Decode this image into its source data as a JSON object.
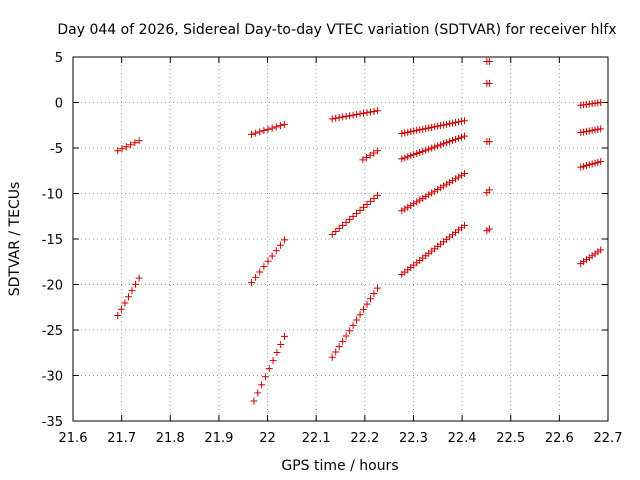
{
  "chart_data": {
    "type": "scatter",
    "title": "Day 044 of 2026, Sidereal Day-to-day VTEC variation (SDTVAR) for receiver hlfx",
    "xlabel": "GPS time / hours",
    "ylabel": "SDTVAR / TECUs",
    "xlim": [
      21.6,
      22.7
    ],
    "ylim": [
      -35,
      5
    ],
    "xticks": [
      "21.6",
      "21.7",
      "21.8",
      "21.9",
      "22",
      "22.1",
      "22.2",
      "22.3",
      "22.4",
      "22.5",
      "22.6",
      "22.7"
    ],
    "yticks": [
      "5",
      "0",
      "-5",
      "-10",
      "-15",
      "-20",
      "-25",
      "-30",
      "-35"
    ],
    "grid": true,
    "marker": "+",
    "marker_color": "#d00000",
    "tracks": [
      {
        "x0": 21.692,
        "x1": 21.736,
        "n": 6,
        "y0": -5.3,
        "y1": -4.2
      },
      {
        "x0": 21.692,
        "x1": 21.736,
        "n": 7,
        "y0": -23.4,
        "y1": -19.3
      },
      {
        "x0": 21.967,
        "x1": 22.035,
        "n": 9,
        "y0": -3.5,
        "y1": -2.4
      },
      {
        "x0": 21.967,
        "x1": 22.035,
        "n": 9,
        "y0": -19.8,
        "y1": -15.1
      },
      {
        "x0": 21.972,
        "x1": 22.035,
        "n": 9,
        "y0": -32.8,
        "y1": -25.7
      },
      {
        "x0": 22.133,
        "x1": 22.226,
        "n": 14,
        "y0": -1.8,
        "y1": -0.9
      },
      {
        "x0": 22.133,
        "x1": 22.226,
        "n": 14,
        "y0": -14.5,
        "y1": -10.2
      },
      {
        "x0": 22.133,
        "x1": 22.226,
        "n": 14,
        "y0": -28.0,
        "y1": -20.4
      },
      {
        "x0": 22.196,
        "x1": 22.226,
        "n": 5,
        "y0": -6.3,
        "y1": -5.3
      },
      {
        "x0": 22.276,
        "x1": 22.405,
        "n": 22,
        "y0": -3.4,
        "y1": -2.0
      },
      {
        "x0": 22.276,
        "x1": 22.405,
        "n": 22,
        "y0": -6.2,
        "y1": -3.7
      },
      {
        "x0": 22.276,
        "x1": 22.405,
        "n": 22,
        "y0": -11.9,
        "y1": -7.8
      },
      {
        "x0": 22.276,
        "x1": 22.405,
        "n": 22,
        "y0": -18.9,
        "y1": -13.5
      },
      {
        "x0": 22.451,
        "x1": 22.456,
        "n": 2,
        "y0": 4.5,
        "y1": 4.5
      },
      {
        "x0": 22.451,
        "x1": 22.456,
        "n": 2,
        "y0": 2.1,
        "y1": 2.1
      },
      {
        "x0": 22.451,
        "x1": 22.456,
        "n": 2,
        "y0": -4.3,
        "y1": -4.3
      },
      {
        "x0": 22.451,
        "x1": 22.456,
        "n": 2,
        "y0": -9.9,
        "y1": -9.6
      },
      {
        "x0": 22.451,
        "x1": 22.456,
        "n": 2,
        "y0": -14.1,
        "y1": -13.9
      },
      {
        "x0": 22.644,
        "x1": 22.685,
        "n": 8,
        "y0": -0.3,
        "y1": 0.0
      },
      {
        "x0": 22.644,
        "x1": 22.685,
        "n": 8,
        "y0": -3.3,
        "y1": -2.9
      },
      {
        "x0": 22.644,
        "x1": 22.685,
        "n": 8,
        "y0": -7.1,
        "y1": -6.5
      },
      {
        "x0": 22.644,
        "x1": 22.685,
        "n": 8,
        "y0": -17.7,
        "y1": -16.2
      }
    ]
  }
}
